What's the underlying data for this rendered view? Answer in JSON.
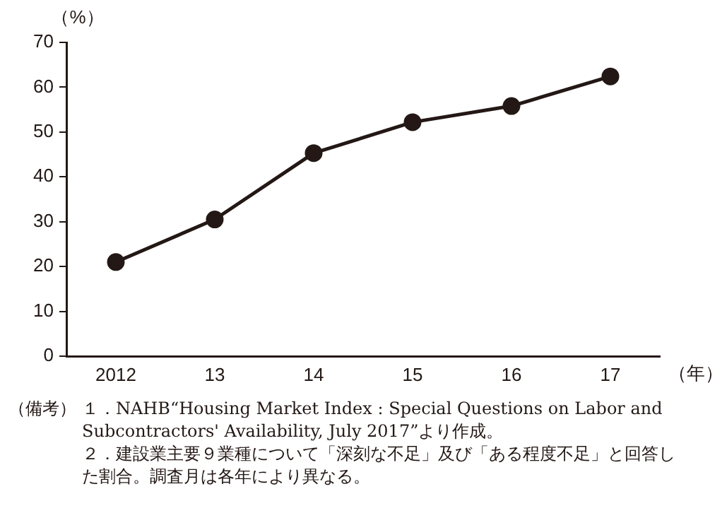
{
  "chart_data": {
    "type": "line",
    "ylabel": "（%）",
    "xlabel": "（年）",
    "categories": [
      "2012",
      "13",
      "14",
      "15",
      "16",
      "17"
    ],
    "series": [
      {
        "color": "#231815",
        "values": [
          21.0,
          30.5,
          45.3,
          52.2,
          55.8,
          62.4
        ]
      }
    ],
    "ylim": [
      0,
      70
    ],
    "yticks": [
      0,
      10,
      20,
      30,
      40,
      50,
      60,
      70
    ],
    "grid": false,
    "legend": false,
    "marker": "circle",
    "line_style": "solid",
    "annotations": [
      "（備考）",
      "１．NAHB“Housing Market Index : Special Questions on Labor and Subcontractors' Availability, July 2017”より作成。",
      "２．建設業主要９業種について「深刻な不足」及び「ある程度不足」と回答した割合。調査月は各年により異なる。"
    ]
  }
}
